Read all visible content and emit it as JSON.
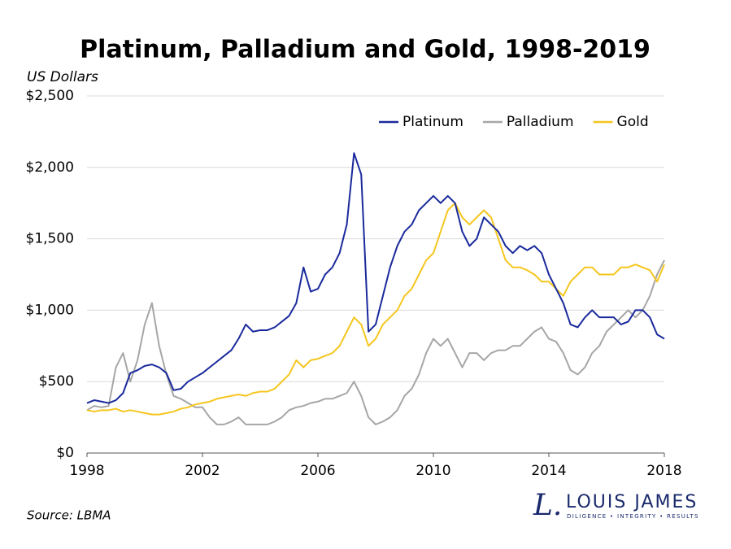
{
  "chart_data": {
    "type": "line",
    "title": "Platinum, Palladium and Gold, 1998-2019",
    "y_label": "US Dollars",
    "source": "Source: LBMA",
    "logo": {
      "mark": "L.",
      "name": "LOUIS JAMES",
      "tagline": "DILIGENCE • INTEGRITY • RESULTS"
    },
    "x": [
      1998,
      1998.25,
      1998.5,
      1998.75,
      1999,
      1999.25,
      1999.5,
      1999.75,
      2000,
      2000.25,
      2000.5,
      2000.75,
      2001,
      2001.25,
      2001.5,
      2001.75,
      2002,
      2002.25,
      2002.5,
      2002.75,
      2003,
      2003.25,
      2003.5,
      2003.75,
      2004,
      2004.25,
      2004.5,
      2004.75,
      2005,
      2005.25,
      2005.5,
      2005.75,
      2006,
      2006.25,
      2006.5,
      2006.75,
      2007,
      2007.25,
      2007.5,
      2007.75,
      2008,
      2008.25,
      2008.5,
      2008.75,
      2009,
      2009.25,
      2009.5,
      2009.75,
      2010,
      2010.25,
      2010.5,
      2010.75,
      2011,
      2011.25,
      2011.5,
      2011.75,
      2012,
      2012.25,
      2012.5,
      2012.75,
      2013,
      2013.25,
      2013.5,
      2013.75,
      2014,
      2014.25,
      2014.5,
      2014.75,
      2015,
      2015.25,
      2015.5,
      2015.75,
      2016,
      2016.25,
      2016.5,
      2016.75,
      2017,
      2017.25,
      2017.5,
      2017.75,
      2018
    ],
    "series": [
      {
        "name": "Platinum",
        "color": "#1a2a9c",
        "values": [
          350,
          370,
          360,
          350,
          370,
          420,
          560,
          580,
          610,
          620,
          600,
          560,
          440,
          450,
          500,
          530,
          560,
          600,
          640,
          680,
          720,
          800,
          900,
          850,
          860,
          860,
          880,
          920,
          960,
          1050,
          1300,
          1130,
          1150,
          1250,
          1300,
          1400,
          1600,
          2100,
          1950,
          850,
          900,
          1100,
          1300,
          1450,
          1550,
          1600,
          1700,
          1750,
          1800,
          1750,
          1800,
          1750,
          1550,
          1450,
          1500,
          1650,
          1600,
          1550,
          1450,
          1400,
          1450,
          1420,
          1450,
          1400,
          1250,
          1150,
          1050,
          900,
          880,
          950,
          1000,
          950,
          950,
          950,
          900,
          920,
          1000,
          1000,
          950,
          830,
          800
        ]
      },
      {
        "name": "Palladium",
        "color": "#a6a6a6",
        "values": [
          300,
          330,
          320,
          330,
          600,
          700,
          500,
          650,
          900,
          1050,
          750,
          550,
          400,
          380,
          350,
          320,
          320,
          250,
          200,
          200,
          220,
          250,
          200,
          200,
          200,
          200,
          220,
          250,
          300,
          320,
          330,
          350,
          360,
          380,
          380,
          400,
          420,
          500,
          400,
          250,
          200,
          220,
          250,
          300,
          400,
          450,
          550,
          700,
          800,
          750,
          800,
          700,
          600,
          700,
          700,
          650,
          700,
          720,
          720,
          750,
          750,
          800,
          850,
          880,
          800,
          780,
          700,
          580,
          550,
          600,
          700,
          750,
          850,
          900,
          950,
          1000,
          950,
          1000,
          1100,
          1250,
          1350
        ]
      },
      {
        "name": "Gold",
        "color": "#f5c61e",
        "values": [
          300,
          290,
          300,
          300,
          310,
          290,
          300,
          290,
          280,
          270,
          270,
          280,
          290,
          310,
          320,
          340,
          350,
          360,
          380,
          390,
          400,
          410,
          400,
          420,
          430,
          430,
          450,
          500,
          550,
          650,
          600,
          650,
          660,
          680,
          700,
          750,
          850,
          950,
          900,
          750,
          800,
          900,
          950,
          1000,
          1100,
          1150,
          1250,
          1350,
          1400,
          1550,
          1700,
          1750,
          1650,
          1600,
          1650,
          1700,
          1650,
          1500,
          1350,
          1300,
          1300,
          1280,
          1250,
          1200,
          1200,
          1150,
          1100,
          1200,
          1250,
          1300,
          1300,
          1250,
          1250,
          1250,
          1300,
          1300,
          1320,
          1300,
          1280,
          1200,
          1320
        ]
      }
    ],
    "xlim": [
      1998,
      2018
    ],
    "xticks": [
      1998,
      2002,
      2006,
      2010,
      2014,
      2018
    ],
    "ylim": [
      0,
      2500
    ],
    "yticks": [
      {
        "value": 0,
        "label": "$0"
      },
      {
        "value": 500,
        "label": "$500"
      },
      {
        "value": 1000,
        "label": "$1,000"
      },
      {
        "value": 1500,
        "label": "$1,500"
      },
      {
        "value": 2000,
        "label": "$2,000"
      },
      {
        "value": 2500,
        "label": "$2,500"
      }
    ],
    "grid": true,
    "legend": "top-right"
  }
}
